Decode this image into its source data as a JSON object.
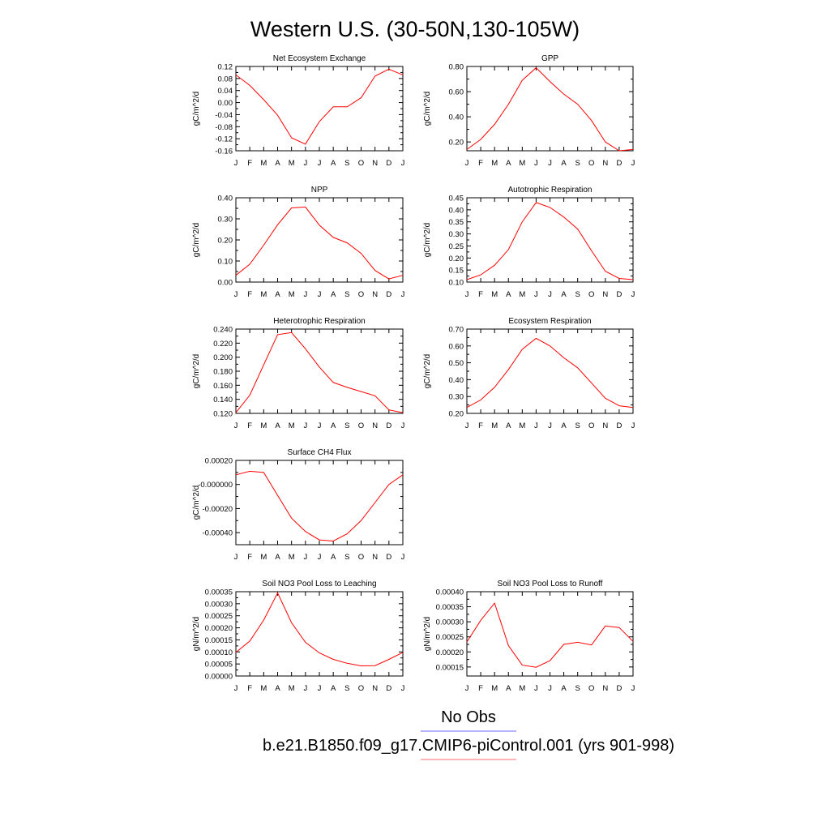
{
  "figure": {
    "title": "Western U.S. (30-50N,130-105W)",
    "legend": {
      "obs_label": "No Obs",
      "model_label": "b.e21.B1850.f09_g17.CMIP6-piControl.001 (yrs 901-998)",
      "obs_color": "#6b6bff",
      "model_color": "#ff6b6b"
    }
  },
  "chart_data": [
    {
      "type": "line",
      "title": "Net Ecosystem Exchange",
      "ylabel": "gC/m^2/d",
      "x": [
        "J",
        "F",
        "M",
        "A",
        "M",
        "J",
        "J",
        "A",
        "S",
        "O",
        "N",
        "D",
        "J"
      ],
      "ylim": [
        -0.16,
        0.12
      ],
      "yticks": [
        0.12,
        0.08,
        0.04,
        0.0,
        -0.04,
        -0.08,
        -0.12,
        -0.16
      ],
      "ytick_labels": [
        "0.12",
        "0.08",
        "0.04",
        "0.00",
        "-0.04",
        "-0.08",
        "-0.12",
        "-0.16"
      ],
      "series": [
        {
          "color": "#ff0000",
          "values": [
            0.092,
            0.057,
            0.01,
            -0.042,
            -0.117,
            -0.138,
            -0.063,
            -0.014,
            -0.014,
            0.016,
            0.088,
            0.111,
            0.092
          ]
        }
      ]
    },
    {
      "type": "line",
      "title": "GPP",
      "ylabel": "gC/m^2/d",
      "x": [
        "J",
        "F",
        "M",
        "A",
        "M",
        "J",
        "J",
        "A",
        "S",
        "O",
        "N",
        "D",
        "J"
      ],
      "ylim": [
        0.13,
        0.8
      ],
      "yticks": [
        0.8,
        0.6,
        0.4,
        0.2
      ],
      "ytick_labels": [
        "0.80",
        "0.60",
        "0.40",
        "0.20"
      ],
      "series": [
        {
          "color": "#ff0000",
          "values": [
            0.14,
            0.22,
            0.34,
            0.5,
            0.69,
            0.79,
            0.68,
            0.58,
            0.5,
            0.37,
            0.2,
            0.13,
            0.14
          ]
        }
      ]
    },
    {
      "type": "line",
      "title": "NPP",
      "ylabel": "gC/m^2/d",
      "x": [
        "J",
        "F",
        "M",
        "A",
        "M",
        "J",
        "J",
        "A",
        "S",
        "O",
        "N",
        "D",
        "J"
      ],
      "ylim": [
        0.0,
        0.4
      ],
      "yticks": [
        0.4,
        0.3,
        0.2,
        0.1,
        0.0
      ],
      "ytick_labels": [
        "0.40",
        "0.30",
        "0.20",
        "0.10",
        "0.00"
      ],
      "series": [
        {
          "color": "#ff0000",
          "values": [
            0.032,
            0.085,
            0.175,
            0.272,
            0.352,
            0.356,
            0.27,
            0.212,
            0.186,
            0.136,
            0.055,
            0.015,
            0.032
          ]
        }
      ]
    },
    {
      "type": "line",
      "title": "Autotrophic Respiration",
      "ylabel": "gC/m^2/d",
      "x": [
        "J",
        "F",
        "M",
        "A",
        "M",
        "J",
        "J",
        "A",
        "S",
        "O",
        "N",
        "D",
        "J"
      ],
      "ylim": [
        0.1,
        0.45
      ],
      "yticks": [
        0.45,
        0.4,
        0.35,
        0.3,
        0.25,
        0.2,
        0.15,
        0.1
      ],
      "ytick_labels": [
        "0.45",
        "0.40",
        "0.35",
        "0.30",
        "0.25",
        "0.20",
        "0.15",
        "0.10"
      ],
      "series": [
        {
          "color": "#ff0000",
          "values": [
            0.11,
            0.13,
            0.17,
            0.235,
            0.35,
            0.43,
            0.41,
            0.37,
            0.32,
            0.23,
            0.145,
            0.115,
            0.11
          ]
        }
      ]
    },
    {
      "type": "line",
      "title": "Heterotrophic Respiration",
      "ylabel": "gC/m^2/d",
      "x": [
        "J",
        "F",
        "M",
        "A",
        "M",
        "J",
        "J",
        "A",
        "S",
        "O",
        "N",
        "D",
        "J"
      ],
      "ylim": [
        0.12,
        0.24
      ],
      "yticks": [
        0.24,
        0.22,
        0.2,
        0.18,
        0.16,
        0.14,
        0.12
      ],
      "ytick_labels": [
        "0.240",
        "0.220",
        "0.200",
        "0.180",
        "0.160",
        "0.140",
        "0.120"
      ],
      "series": [
        {
          "color": "#ff0000",
          "values": [
            0.121,
            0.146,
            0.189,
            0.232,
            0.235,
            0.212,
            0.186,
            0.164,
            0.157,
            0.151,
            0.145,
            0.125,
            0.121
          ]
        }
      ]
    },
    {
      "type": "line",
      "title": "Ecosystem Respiration",
      "ylabel": "gC/m^2/d",
      "x": [
        "J",
        "F",
        "M",
        "A",
        "M",
        "J",
        "J",
        "A",
        "S",
        "O",
        "N",
        "D",
        "J"
      ],
      "ylim": [
        0.2,
        0.7
      ],
      "yticks": [
        0.7,
        0.6,
        0.5,
        0.4,
        0.3,
        0.2
      ],
      "ytick_labels": [
        "0.70",
        "0.60",
        "0.50",
        "0.40",
        "0.30",
        "0.20"
      ],
      "series": [
        {
          "color": "#ff0000",
          "values": [
            0.235,
            0.28,
            0.355,
            0.46,
            0.58,
            0.645,
            0.6,
            0.53,
            0.47,
            0.38,
            0.29,
            0.245,
            0.235
          ]
        }
      ]
    },
    {
      "type": "line",
      "title": "Surface CH4 Flux",
      "ylabel": "gC/m^2/d",
      "x": [
        "J",
        "F",
        "M",
        "A",
        "M",
        "J",
        "J",
        "A",
        "S",
        "O",
        "N",
        "D",
        "J"
      ],
      "ylim": [
        -0.0005,
        0.0002
      ],
      "yticks": [
        0.0002,
        0.0,
        -0.0002,
        -0.0004
      ],
      "ytick_labels": [
        "0.00020",
        "-0.000000",
        "-0.00020",
        "-0.00040"
      ],
      "series": [
        {
          "color": "#ff0000",
          "values": [
            8e-05,
            0.00011,
            0.0001,
            -9e-05,
            -0.00028,
            -0.00039,
            -0.00046,
            -0.00047,
            -0.00041,
            -0.0003,
            -0.00015,
            0.0,
            8e-05
          ]
        }
      ]
    },
    {
      "type": "line",
      "title": "Soil NO3 Pool Loss to Leaching",
      "ylabel": "gN/m^2/d",
      "x": [
        "J",
        "F",
        "M",
        "A",
        "M",
        "J",
        "J",
        "A",
        "S",
        "O",
        "N",
        "D",
        "J"
      ],
      "ylim": [
        0.0,
        0.00035
      ],
      "yticks": [
        0.00035,
        0.0003,
        0.00025,
        0.0002,
        0.00015,
        0.0001,
        5e-05,
        0.0
      ],
      "ytick_labels": [
        "0.00035",
        "0.00030",
        "0.00025",
        "0.00020",
        "0.00015",
        "0.00010",
        "0.00005",
        "0.00000"
      ],
      "series": [
        {
          "color": "#ff0000",
          "values": [
            9.8e-05,
            0.000145,
            0.000232,
            0.000345,
            0.000221,
            0.00014,
            9.6e-05,
            6.9e-05,
            5.3e-05,
            4.2e-05,
            4.3e-05,
            6.9e-05,
            9.8e-05
          ]
        }
      ]
    },
    {
      "type": "line",
      "title": "Soil NO3 Pool Loss to Runoff",
      "ylabel": "gN/m^2/d",
      "x": [
        "J",
        "F",
        "M",
        "A",
        "M",
        "J",
        "J",
        "A",
        "S",
        "O",
        "N",
        "D",
        "J"
      ],
      "ylim": [
        0.00012,
        0.0004
      ],
      "yticks": [
        0.0004,
        0.00035,
        0.0003,
        0.00025,
        0.0002,
        0.00015
      ],
      "ytick_labels": [
        "0.00040",
        "0.00035",
        "0.00030",
        "0.00025",
        "0.00020",
        "0.00015"
      ],
      "series": [
        {
          "color": "#ff0000",
          "values": [
            0.000233,
            0.000305,
            0.000362,
            0.000221,
            0.000156,
            0.000149,
            0.000171,
            0.000225,
            0.000232,
            0.000223,
            0.000286,
            0.000281,
            0.000235
          ]
        }
      ]
    }
  ]
}
